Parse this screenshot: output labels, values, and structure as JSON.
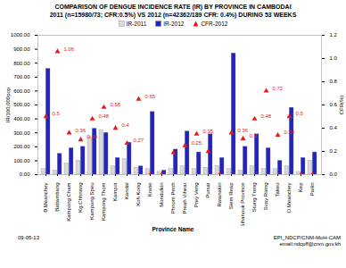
{
  "chart_data": {
    "type": "bar",
    "title": "COMPARISON OF DENGUE INCIDENCE RATE (IR) BY PROVINCE IN CAMBODAI",
    "subtitle": "2011 (n=15980/73; CFR:0.5%) VS 2012 (n=42362/189 CFR: 0.4%) DURING 53 WEEKS",
    "xlabel": "Province Name",
    "ylabel": "IR/100,000pop",
    "y2label": "CFR(%)",
    "categories": [
      "B.Meanchey",
      "Battambang",
      "Kampong Cham",
      "Kg.Chhnang",
      "Kampong Speu",
      "Kampong Thom",
      "Kampot",
      "Kandal",
      "Koh Kong",
      "Kratie",
      "Mondulkiri",
      "Phnom Penh",
      "Preah Vihear",
      "Prey Veng",
      "Pursat",
      "Ratanakiri",
      "Siem Reap",
      "Sihanouk Province",
      "Stung Treng",
      "Svay Rieng",
      "Takeo",
      "O.Meanchey",
      "Kep",
      "Pailin"
    ],
    "series": [
      {
        "name": "IR-2011",
        "color": "#d9d9d9",
        "values": [
          40,
          30,
          80,
          100,
          270,
          320,
          60,
          110,
          50,
          40,
          20,
          40,
          60,
          40,
          50,
          60,
          40,
          30,
          60,
          40,
          40,
          60,
          20,
          100
        ]
      },
      {
        "name": "IR-2012",
        "color": "#2323c2",
        "values": [
          760,
          150,
          190,
          200,
          330,
          300,
          120,
          230,
          60,
          450,
          30,
          180,
          310,
          160,
          290,
          120,
          870,
          200,
          290,
          190,
          100,
          480,
          120,
          160
        ]
      },
      {
        "name": "CFR-2012",
        "color": "#e41a1c",
        "type": "scatter",
        "marker": "triangle",
        "axis": "y2",
        "data_labels": true,
        "values": [
          0.5,
          1.06,
          0.36,
          0.3,
          0.48,
          0.58,
          0.4,
          0.27,
          0.65,
          0,
          0,
          0.19,
          0.25,
          0.35,
          0.2,
          0,
          0.36,
          0.31,
          0.48,
          0.72,
          0.34,
          0.5,
          0,
          0
        ],
        "value_labels": [
          "0.5",
          "1.06",
          "0.36",
          "0.30",
          "0.48",
          "0.58",
          "0.4",
          "0.27",
          "0.65",
          null,
          null,
          null,
          "0.25",
          "0.35",
          null,
          null,
          "0.36",
          "0.31",
          "0.48",
          "0.72",
          "0.34",
          "0.5",
          null,
          null
        ]
      }
    ],
    "ylim": [
      0,
      1000
    ],
    "yticks": [
      {
        "value": 0,
        "label": "0.00"
      },
      {
        "value": 100,
        "label": "100.00"
      },
      {
        "value": 200,
        "label": "200.00"
      },
      {
        "value": 300,
        "label": "300.00"
      },
      {
        "value": 400,
        "label": "400.00"
      },
      {
        "value": 500,
        "label": "500.00"
      },
      {
        "value": 600,
        "label": "600.00"
      },
      {
        "value": 700,
        "label": "700.00"
      },
      {
        "value": 800,
        "label": "800.00"
      },
      {
        "value": 900,
        "label": "900.00"
      },
      {
        "value": 1000,
        "label": "1000.00"
      }
    ],
    "y2lim": [
      0,
      1.2
    ],
    "y2ticks": [
      {
        "value": 0,
        "label": "0.0"
      },
      0.2,
      0.4,
      0.6,
      0.8,
      {
        "value": 1,
        "label": "1.0"
      },
      1.2
    ],
    "legend": "top",
    "grid": false,
    "annotations": [
      "09-05-13",
      "EPI_NDCP/CNM-MoH-CAM",
      "email:ndcpff@cnm.gov.kh"
    ]
  }
}
